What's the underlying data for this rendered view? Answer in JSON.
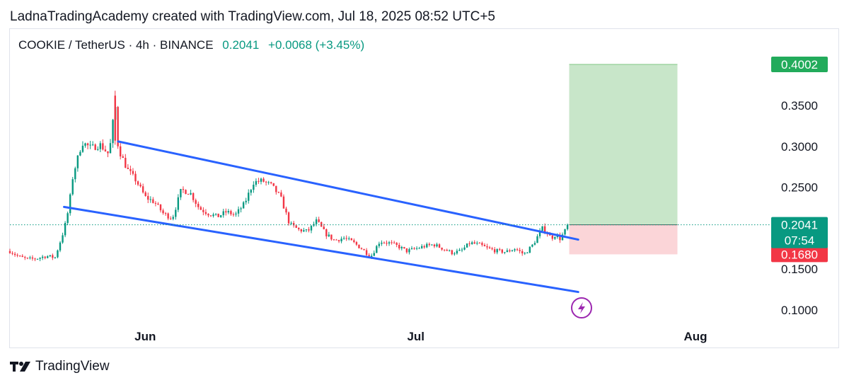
{
  "header": {
    "credit": "LadnaTradingAcademy created with TradingView.com, Jul 18, 2025 08:52 UTC+5"
  },
  "legend": {
    "symbol": "COOKIE / TetherUS · 4h · BINANCE",
    "price": "0.2041",
    "change": "+0.0068 (+3.45%)"
  },
  "brand": {
    "name": "TradingView",
    "icon": "tradingview-logo-icon"
  },
  "colors": {
    "up": "#089981",
    "down": "#f23645",
    "channel": "#2962ff",
    "target_fill": "#c8e6c9",
    "stop_fill": "#fbd5d8",
    "target_badge": "#22ab5b",
    "stop_badge": "#f23645",
    "lightning": "#9c27b0"
  },
  "chart_data": {
    "type": "candlestick",
    "symbol": "COOKIE / TetherUS",
    "interval": "4h",
    "exchange": "BINANCE",
    "y_axis": {
      "range": [
        0.095,
        0.41
      ],
      "ticks": [
        "0.1000",
        "0.1500",
        "0.2500",
        "0.3000",
        "0.3500"
      ]
    },
    "x_axis": {
      "ticks": [
        "Jun",
        "Jul",
        "Aug"
      ],
      "range": [
        "2025-05-17",
        "2025-08-09"
      ]
    },
    "last_price": "0.2041",
    "countdown": "07:54",
    "price_path": [
      [
        "2025-05-17",
        0.172
      ],
      [
        "2025-05-18",
        0.165
      ],
      [
        "2025-05-19",
        0.162
      ],
      [
        "2025-05-20",
        0.163
      ],
      [
        "2025-05-21",
        0.166
      ],
      [
        "2025-05-22",
        0.164
      ],
      [
        "2025-05-23",
        0.198
      ],
      [
        "2025-05-23 12:00",
        0.223
      ],
      [
        "2025-05-24",
        0.265
      ],
      [
        "2025-05-25",
        0.305
      ],
      [
        "2025-05-26",
        0.298
      ],
      [
        "2025-05-27",
        0.302
      ],
      [
        "2025-05-28",
        0.29
      ],
      [
        "2025-05-28 16:00",
        0.352
      ],
      [
        "2025-05-29",
        0.298
      ],
      [
        "2025-05-30",
        0.272
      ],
      [
        "2025-05-31",
        0.258
      ],
      [
        "2025-06-01",
        0.238
      ],
      [
        "2025-06-02",
        0.232
      ],
      [
        "2025-06-03",
        0.218
      ],
      [
        "2025-06-04",
        0.212
      ],
      [
        "2025-06-05",
        0.247
      ],
      [
        "2025-06-06",
        0.243
      ],
      [
        "2025-06-07",
        0.224
      ],
      [
        "2025-06-08",
        0.218
      ],
      [
        "2025-06-09",
        0.214
      ],
      [
        "2025-06-10",
        0.22
      ],
      [
        "2025-06-11",
        0.216
      ],
      [
        "2025-06-12",
        0.23
      ],
      [
        "2025-06-13",
        0.256
      ],
      [
        "2025-06-14",
        0.258
      ],
      [
        "2025-06-15",
        0.252
      ],
      [
        "2025-06-16",
        0.238
      ],
      [
        "2025-06-17",
        0.205
      ],
      [
        "2025-06-18",
        0.198
      ],
      [
        "2025-06-19",
        0.196
      ],
      [
        "2025-06-20",
        0.209
      ],
      [
        "2025-06-21",
        0.193
      ],
      [
        "2025-06-22",
        0.185
      ],
      [
        "2025-06-23",
        0.188
      ],
      [
        "2025-06-24",
        0.183
      ],
      [
        "2025-06-25",
        0.175
      ],
      [
        "2025-06-26",
        0.165
      ],
      [
        "2025-06-27",
        0.184
      ],
      [
        "2025-06-28",
        0.182
      ],
      [
        "2025-06-29",
        0.178
      ],
      [
        "2025-06-30",
        0.172
      ],
      [
        "2025-07-01",
        0.175
      ],
      [
        "2025-07-02",
        0.178
      ],
      [
        "2025-07-03",
        0.18
      ],
      [
        "2025-07-04",
        0.175
      ],
      [
        "2025-07-05",
        0.17
      ],
      [
        "2025-07-06",
        0.172
      ],
      [
        "2025-07-07",
        0.182
      ],
      [
        "2025-07-08",
        0.18
      ],
      [
        "2025-07-09",
        0.175
      ],
      [
        "2025-07-10",
        0.172
      ],
      [
        "2025-07-11",
        0.171
      ],
      [
        "2025-07-12",
        0.175
      ],
      [
        "2025-07-13",
        0.168
      ],
      [
        "2025-07-14",
        0.18
      ],
      [
        "2025-07-15",
        0.2
      ],
      [
        "2025-07-15 12:00",
        0.195
      ],
      [
        "2025-07-16",
        0.188
      ],
      [
        "2025-07-16 12:00",
        0.192
      ],
      [
        "2025-07-17",
        0.187
      ],
      [
        "2025-07-17 12:00",
        0.196
      ],
      [
        "2025-07-18",
        0.2041
      ]
    ],
    "channel": {
      "upper": [
        [
          "2025-05-29",
          0.306
        ],
        [
          "2025-07-19",
          0.186
        ]
      ],
      "lower": [
        [
          "2025-05-23",
          0.226
        ],
        [
          "2025-07-19",
          0.122
        ]
      ]
    },
    "position": {
      "type": "long",
      "start": "2025-07-18",
      "end": "2025-07-30",
      "entry": 0.2041,
      "target": 0.4002,
      "stop": 0.168,
      "target_label": "0.4002",
      "entry_label": "0.2041",
      "stop_label": "0.1680"
    }
  }
}
